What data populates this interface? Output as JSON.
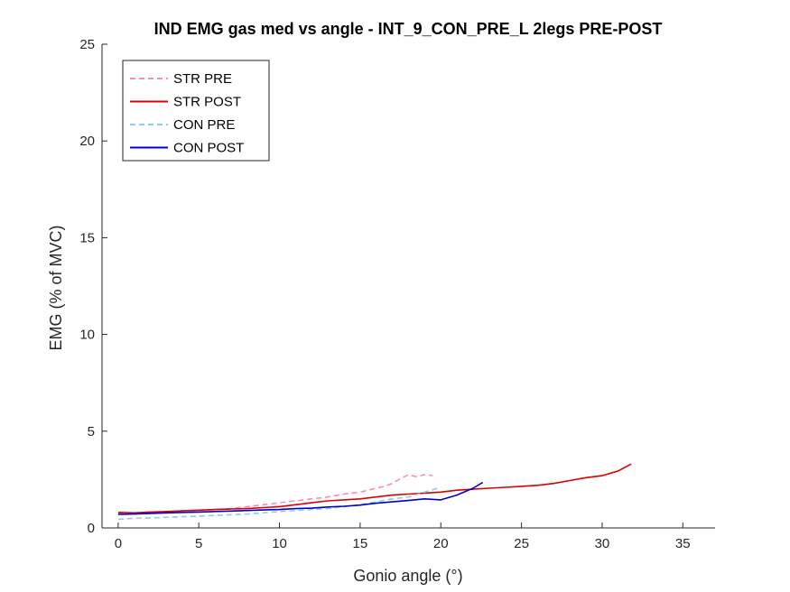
{
  "chart_data": {
    "type": "line",
    "title": "IND EMG gas med vs angle - INT_9_CON_PRE_L 2legs PRE-POST",
    "xlabel": "Gonio angle (°)",
    "ylabel": "EMG (% of MVC)",
    "xlim": [
      -1,
      37
    ],
    "ylim": [
      0,
      25
    ],
    "xticks": [
      0,
      5,
      10,
      15,
      20,
      25,
      30,
      35
    ],
    "yticks": [
      0,
      5,
      10,
      15,
      20,
      25
    ],
    "grid": false,
    "legend_position": "top-left",
    "series": [
      {
        "name": "STR PRE",
        "color": "#ff88bb",
        "dash": "dashed",
        "x": [
          0,
          1,
          2,
          3,
          4,
          5,
          6,
          7,
          8,
          9,
          10,
          11,
          12,
          13,
          14,
          15,
          16,
          16.5,
          17,
          17.5,
          18,
          18.5,
          19,
          19.5
        ],
        "y": [
          0.75,
          0.78,
          0.8,
          0.85,
          0.88,
          0.9,
          0.95,
          1.0,
          1.1,
          1.2,
          1.3,
          1.4,
          1.5,
          1.6,
          1.75,
          1.85,
          2.05,
          2.15,
          2.3,
          2.55,
          2.75,
          2.65,
          2.75,
          2.7
        ]
      },
      {
        "name": "STR POST",
        "color": "#dd0000",
        "dash": "solid",
        "x": [
          0,
          1,
          2,
          3,
          4,
          5,
          6,
          7,
          8,
          9,
          10,
          11,
          12,
          13,
          14,
          15,
          16,
          17,
          18,
          19,
          20,
          21,
          22,
          23,
          24,
          25,
          26,
          27,
          28,
          29,
          30,
          31,
          31.8
        ],
        "y": [
          0.8,
          0.78,
          0.82,
          0.85,
          0.88,
          0.92,
          0.95,
          0.98,
          1.0,
          1.05,
          1.1,
          1.2,
          1.3,
          1.4,
          1.45,
          1.5,
          1.6,
          1.7,
          1.75,
          1.8,
          1.85,
          1.95,
          2.0,
          2.05,
          2.1,
          2.15,
          2.2,
          2.3,
          2.45,
          2.6,
          2.7,
          2.95,
          3.3
        ]
      },
      {
        "name": "CON PRE",
        "color": "#88ccee",
        "dash": "dashed",
        "x": [
          0,
          1,
          2,
          3,
          4,
          5,
          6,
          7,
          8,
          9,
          10,
          11,
          12,
          13,
          14,
          15,
          16,
          17,
          18,
          19,
          20
        ],
        "y": [
          0.45,
          0.5,
          0.52,
          0.55,
          0.58,
          0.6,
          0.65,
          0.68,
          0.72,
          0.78,
          0.85,
          0.9,
          0.95,
          1.0,
          1.1,
          1.2,
          1.35,
          1.5,
          1.6,
          1.85,
          2.1
        ]
      },
      {
        "name": "CON POST",
        "color": "#0000cc",
        "dash": "solid",
        "x": [
          0,
          1,
          2,
          3,
          4,
          5,
          6,
          7,
          8,
          9,
          10,
          11,
          12,
          13,
          14,
          15,
          16,
          17,
          18,
          19,
          20,
          21,
          22,
          22.6
        ],
        "y": [
          0.7,
          0.72,
          0.75,
          0.78,
          0.8,
          0.82,
          0.85,
          0.87,
          0.9,
          0.93,
          0.95,
          1.0,
          1.02,
          1.08,
          1.12,
          1.18,
          1.28,
          1.35,
          1.42,
          1.5,
          1.45,
          1.7,
          2.05,
          2.35
        ]
      }
    ]
  }
}
